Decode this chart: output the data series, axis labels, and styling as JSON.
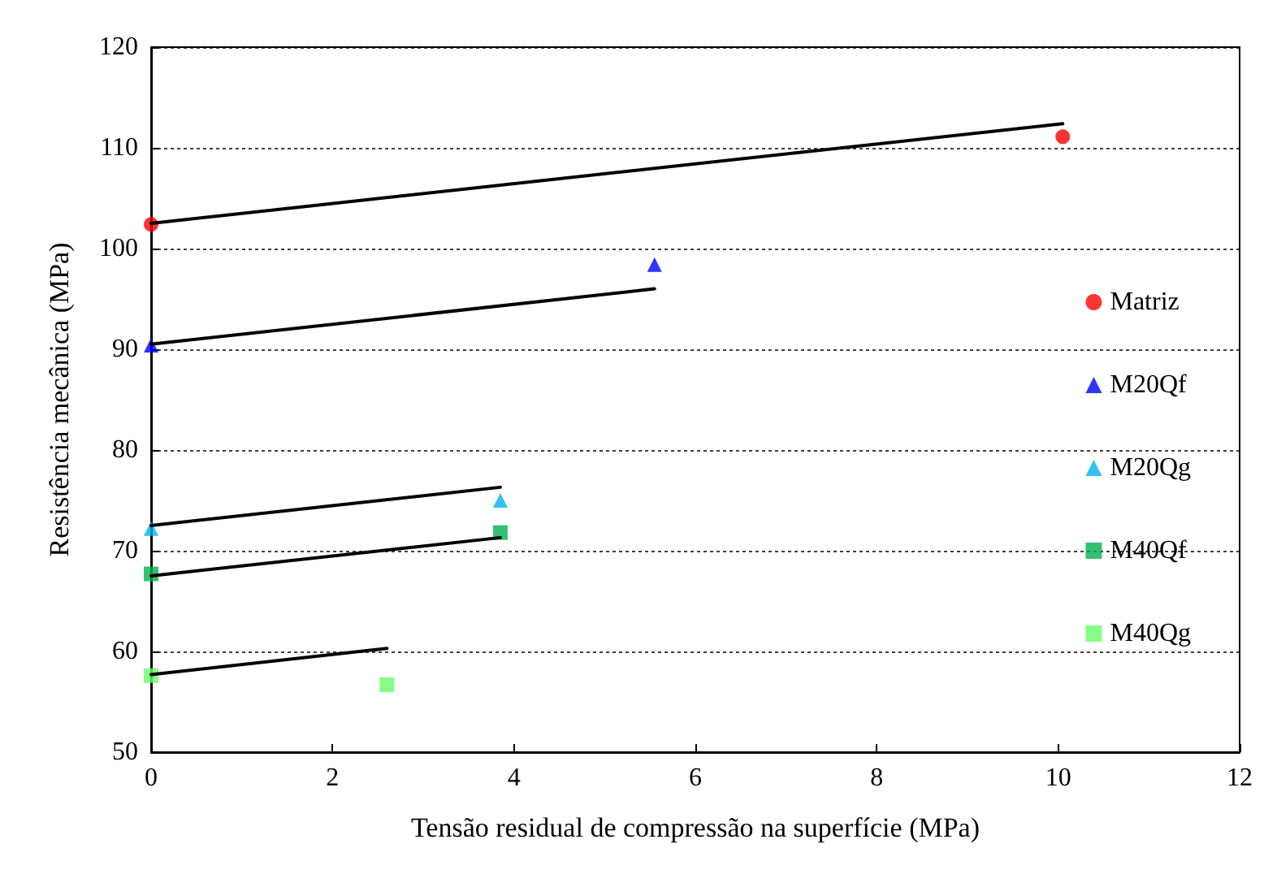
{
  "chart_data": {
    "type": "scatter",
    "xlabel": "Tensão residual de compressão na superfície (MPa)",
    "ylabel": "Resistência mecânica (MPa)",
    "xlim": [
      0,
      12
    ],
    "xticks": [
      0,
      2,
      4,
      6,
      8,
      10,
      12
    ],
    "ylim": [
      50,
      120
    ],
    "yticks": [
      50,
      60,
      70,
      80,
      90,
      100,
      110,
      120
    ],
    "grid": "y",
    "legend": "right",
    "series": [
      {
        "name": "Matriz",
        "color": "#ff0000",
        "marker": "circle",
        "x": [
          0,
          10.05
        ],
        "values": [
          102.4,
          111.1
        ]
      },
      {
        "name": "M20Qf",
        "color": "#0000ff",
        "marker": "triangle",
        "x": [
          0,
          5.55
        ],
        "values": [
          90.4,
          98.4
        ]
      },
      {
        "name": "M20Qg",
        "color": "#00b0f0",
        "marker": "triangle",
        "x": [
          0,
          3.85
        ],
        "values": [
          72.2,
          75.0
        ]
      },
      {
        "name": "M40Qf",
        "color": "#00b050",
        "marker": "square",
        "x": [
          0,
          3.85
        ],
        "values": [
          67.7,
          71.8
        ]
      },
      {
        "name": "M40Qg",
        "color": "#66ff66",
        "marker": "square",
        "x": [
          0,
          2.6
        ],
        "values": [
          57.6,
          56.7
        ]
      },
      {
        "type": "line",
        "color": "#000000",
        "marker": "none",
        "x": [
          0,
          10.05
        ],
        "values": [
          102.5,
          112.4
        ]
      },
      {
        "type": "line",
        "color": "#000000",
        "marker": "none",
        "x": [
          0,
          5.55
        ],
        "values": [
          90.5,
          96.0
        ]
      },
      {
        "type": "line",
        "color": "#000000",
        "marker": "none",
        "x": [
          0,
          3.85
        ],
        "values": [
          72.5,
          76.3
        ]
      },
      {
        "type": "line",
        "color": "#000000",
        "marker": "none",
        "x": [
          0,
          3.85
        ],
        "values": [
          67.5,
          71.3
        ]
      },
      {
        "type": "line",
        "color": "#000000",
        "marker": "none",
        "x": [
          0,
          2.6
        ],
        "values": [
          57.7,
          60.3
        ]
      }
    ]
  }
}
